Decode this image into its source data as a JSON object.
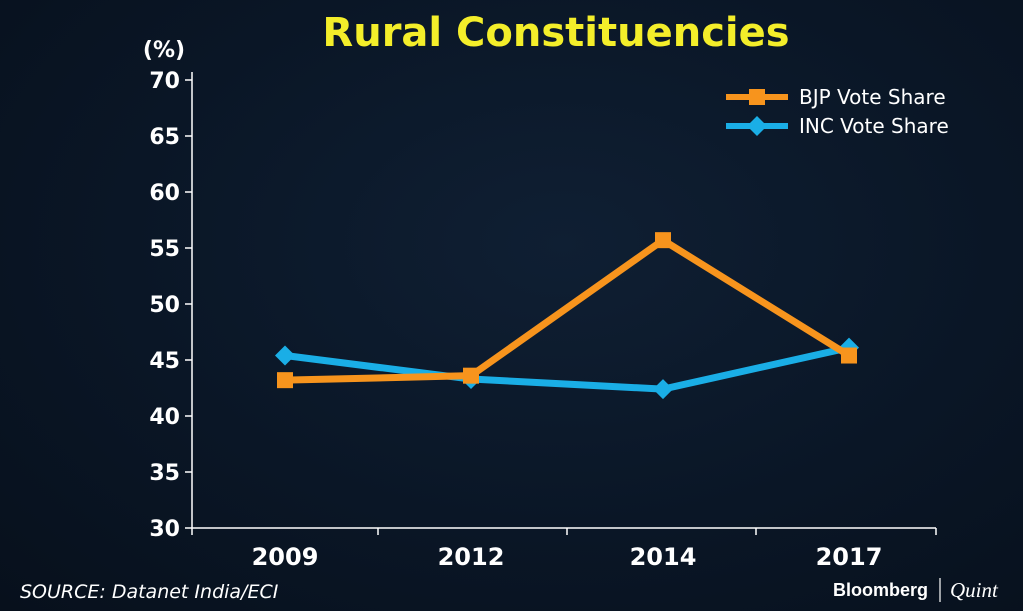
{
  "chart_data": {
    "type": "line",
    "title": "Rural Constituencies",
    "unit_label": "(%)",
    "categories": [
      "2009",
      "2012",
      "2014",
      "2017"
    ],
    "ylim": [
      30,
      70
    ],
    "yticks": [
      30,
      35,
      40,
      45,
      50,
      55,
      60,
      65,
      70
    ],
    "series": [
      {
        "name": "BJP Vote Share",
        "color": "#f7941d",
        "marker": "square",
        "values": [
          43.2,
          43.6,
          55.7,
          45.4
        ]
      },
      {
        "name": "INC Vote Share",
        "color": "#1aaee6",
        "marker": "diamond",
        "values": [
          45.4,
          43.3,
          42.4,
          46.1
        ]
      }
    ],
    "legend_position": "top-right",
    "grid": false
  },
  "footer": {
    "source": "SOURCE: Datanet India/ECI",
    "brand_primary": "Bloomberg",
    "brand_secondary": "Quint"
  }
}
